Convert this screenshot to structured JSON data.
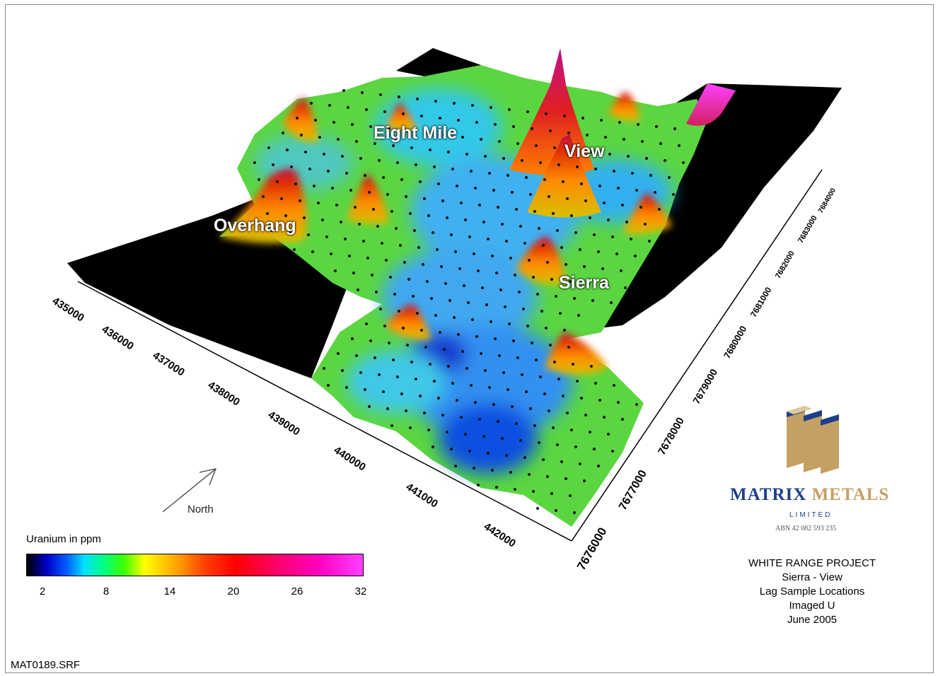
{
  "map": {
    "places": [
      {
        "name": "Eight Mile"
      },
      {
        "name": "View"
      },
      {
        "name": "Overhang"
      },
      {
        "name": "Sierra"
      }
    ],
    "easting_ticks": [
      "435000",
      "436000",
      "437000",
      "438000",
      "439000",
      "440000",
      "441000",
      "442000"
    ],
    "northing_ticks": [
      "7676000",
      "7677000",
      "7678000",
      "7679000",
      "7680000",
      "7681000",
      "7682000",
      "7683000",
      "7684000"
    ],
    "north_arrow_label": "North"
  },
  "legend": {
    "title": "Uranium in ppm",
    "ticks": [
      "2",
      "8",
      "14",
      "20",
      "26",
      "32"
    ],
    "colors": [
      "#000000",
      "#0000c8",
      "#00e0ff",
      "#40ff00",
      "#ffff00",
      "#ff4000",
      "#ff0000",
      "#ff00c0",
      "#ff40ff"
    ]
  },
  "logo": {
    "name_part1": "MATRIX",
    "name_part2": "METALS",
    "limited": "LIMITED",
    "abn": "ABN 42 082 593 235",
    "brand_blue": "#1d3f8a",
    "brand_gold": "#c4a063"
  },
  "title_block": {
    "lines": [
      "WHITE RANGE PROJECT",
      "Sierra - View",
      "Lag Sample Locations",
      "Imaged U",
      "June 2005"
    ]
  },
  "filename": "MAT0189.SRF"
}
